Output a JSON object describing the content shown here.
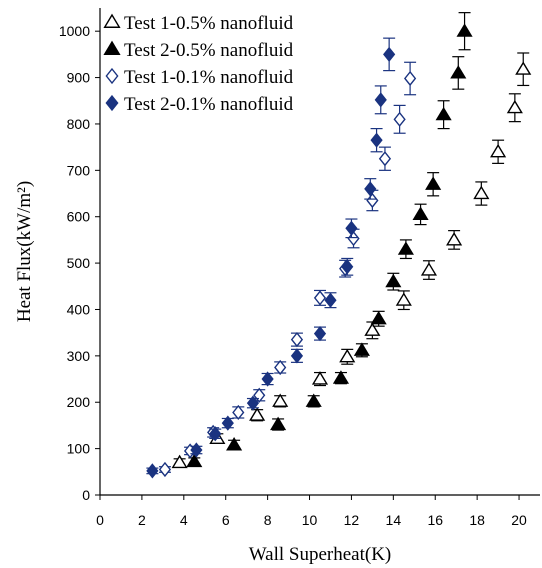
{
  "chart_data": {
    "type": "scatter",
    "xlabel": "Wall Superheat(K)",
    "ylabel": "Heat Flux(kW/m²)",
    "xlim": [
      0,
      21
    ],
    "ylim": [
      0,
      1050
    ],
    "xticks": [
      0,
      2,
      4,
      6,
      8,
      10,
      12,
      14,
      16,
      18,
      20
    ],
    "yticks": [
      0,
      100,
      200,
      300,
      400,
      500,
      600,
      700,
      800,
      900,
      1000
    ],
    "grid": false,
    "legend_position": "top-left",
    "error_bars": true,
    "series": [
      {
        "name": "Test 1-0.5% nanofluid",
        "marker": "triangle-open",
        "color": "#000000",
        "points": [
          [
            3.8,
            70,
            8
          ],
          [
            5.6,
            122,
            10
          ],
          [
            7.5,
            172,
            12
          ],
          [
            8.6,
            202,
            12
          ],
          [
            10.5,
            250,
            14
          ],
          [
            11.8,
            298,
            16
          ],
          [
            13.0,
            355,
            18
          ],
          [
            14.5,
            420,
            20
          ],
          [
            15.7,
            485,
            20
          ],
          [
            16.9,
            550,
            20
          ],
          [
            18.2,
            650,
            25
          ],
          [
            19.0,
            740,
            25
          ],
          [
            19.8,
            835,
            30
          ],
          [
            20.2,
            918,
            35
          ]
        ]
      },
      {
        "name": "Test 2-0.5% nanofluid",
        "marker": "triangle-filled",
        "color": "#000000",
        "points": [
          [
            4.5,
            72,
            8
          ],
          [
            6.4,
            108,
            10
          ],
          [
            8.5,
            152,
            12
          ],
          [
            10.2,
            202,
            12
          ],
          [
            11.5,
            252,
            12
          ],
          [
            12.5,
            312,
            14
          ],
          [
            13.3,
            380,
            16
          ],
          [
            14.0,
            460,
            18
          ],
          [
            14.6,
            530,
            20
          ],
          [
            15.3,
            605,
            22
          ],
          [
            15.9,
            670,
            25
          ],
          [
            16.4,
            820,
            30
          ],
          [
            17.1,
            910,
            35
          ],
          [
            17.4,
            1000,
            40
          ]
        ]
      },
      {
        "name": "Test 1-0.1% nanofluid",
        "marker": "diamond-open",
        "color": "#1a3380",
        "points": [
          [
            3.1,
            55,
            6
          ],
          [
            4.3,
            95,
            8
          ],
          [
            5.4,
            135,
            10
          ],
          [
            6.6,
            178,
            12
          ],
          [
            7.6,
            215,
            12
          ],
          [
            8.6,
            275,
            12
          ],
          [
            9.4,
            335,
            14
          ],
          [
            10.5,
            425,
            16
          ],
          [
            11.7,
            488,
            18
          ],
          [
            12.1,
            553,
            20
          ],
          [
            13.0,
            635,
            22
          ],
          [
            13.6,
            725,
            25
          ],
          [
            14.3,
            810,
            30
          ],
          [
            14.8,
            898,
            35
          ]
        ]
      },
      {
        "name": "Test 2-0.1% nanofluid",
        "marker": "diamond-filled",
        "color": "#1a3380",
        "points": [
          [
            2.5,
            52,
            6
          ],
          [
            4.6,
            97,
            8
          ],
          [
            5.5,
            132,
            10
          ],
          [
            6.1,
            155,
            10
          ],
          [
            7.3,
            198,
            10
          ],
          [
            8.0,
            250,
            12
          ],
          [
            9.4,
            300,
            14
          ],
          [
            10.5,
            348,
            14
          ],
          [
            11.0,
            420,
            16
          ],
          [
            11.8,
            492,
            18
          ],
          [
            12.0,
            575,
            20
          ],
          [
            12.9,
            660,
            22
          ],
          [
            13.2,
            765,
            25
          ],
          [
            13.4,
            852,
            30
          ],
          [
            13.8,
            950,
            35
          ]
        ]
      }
    ]
  }
}
